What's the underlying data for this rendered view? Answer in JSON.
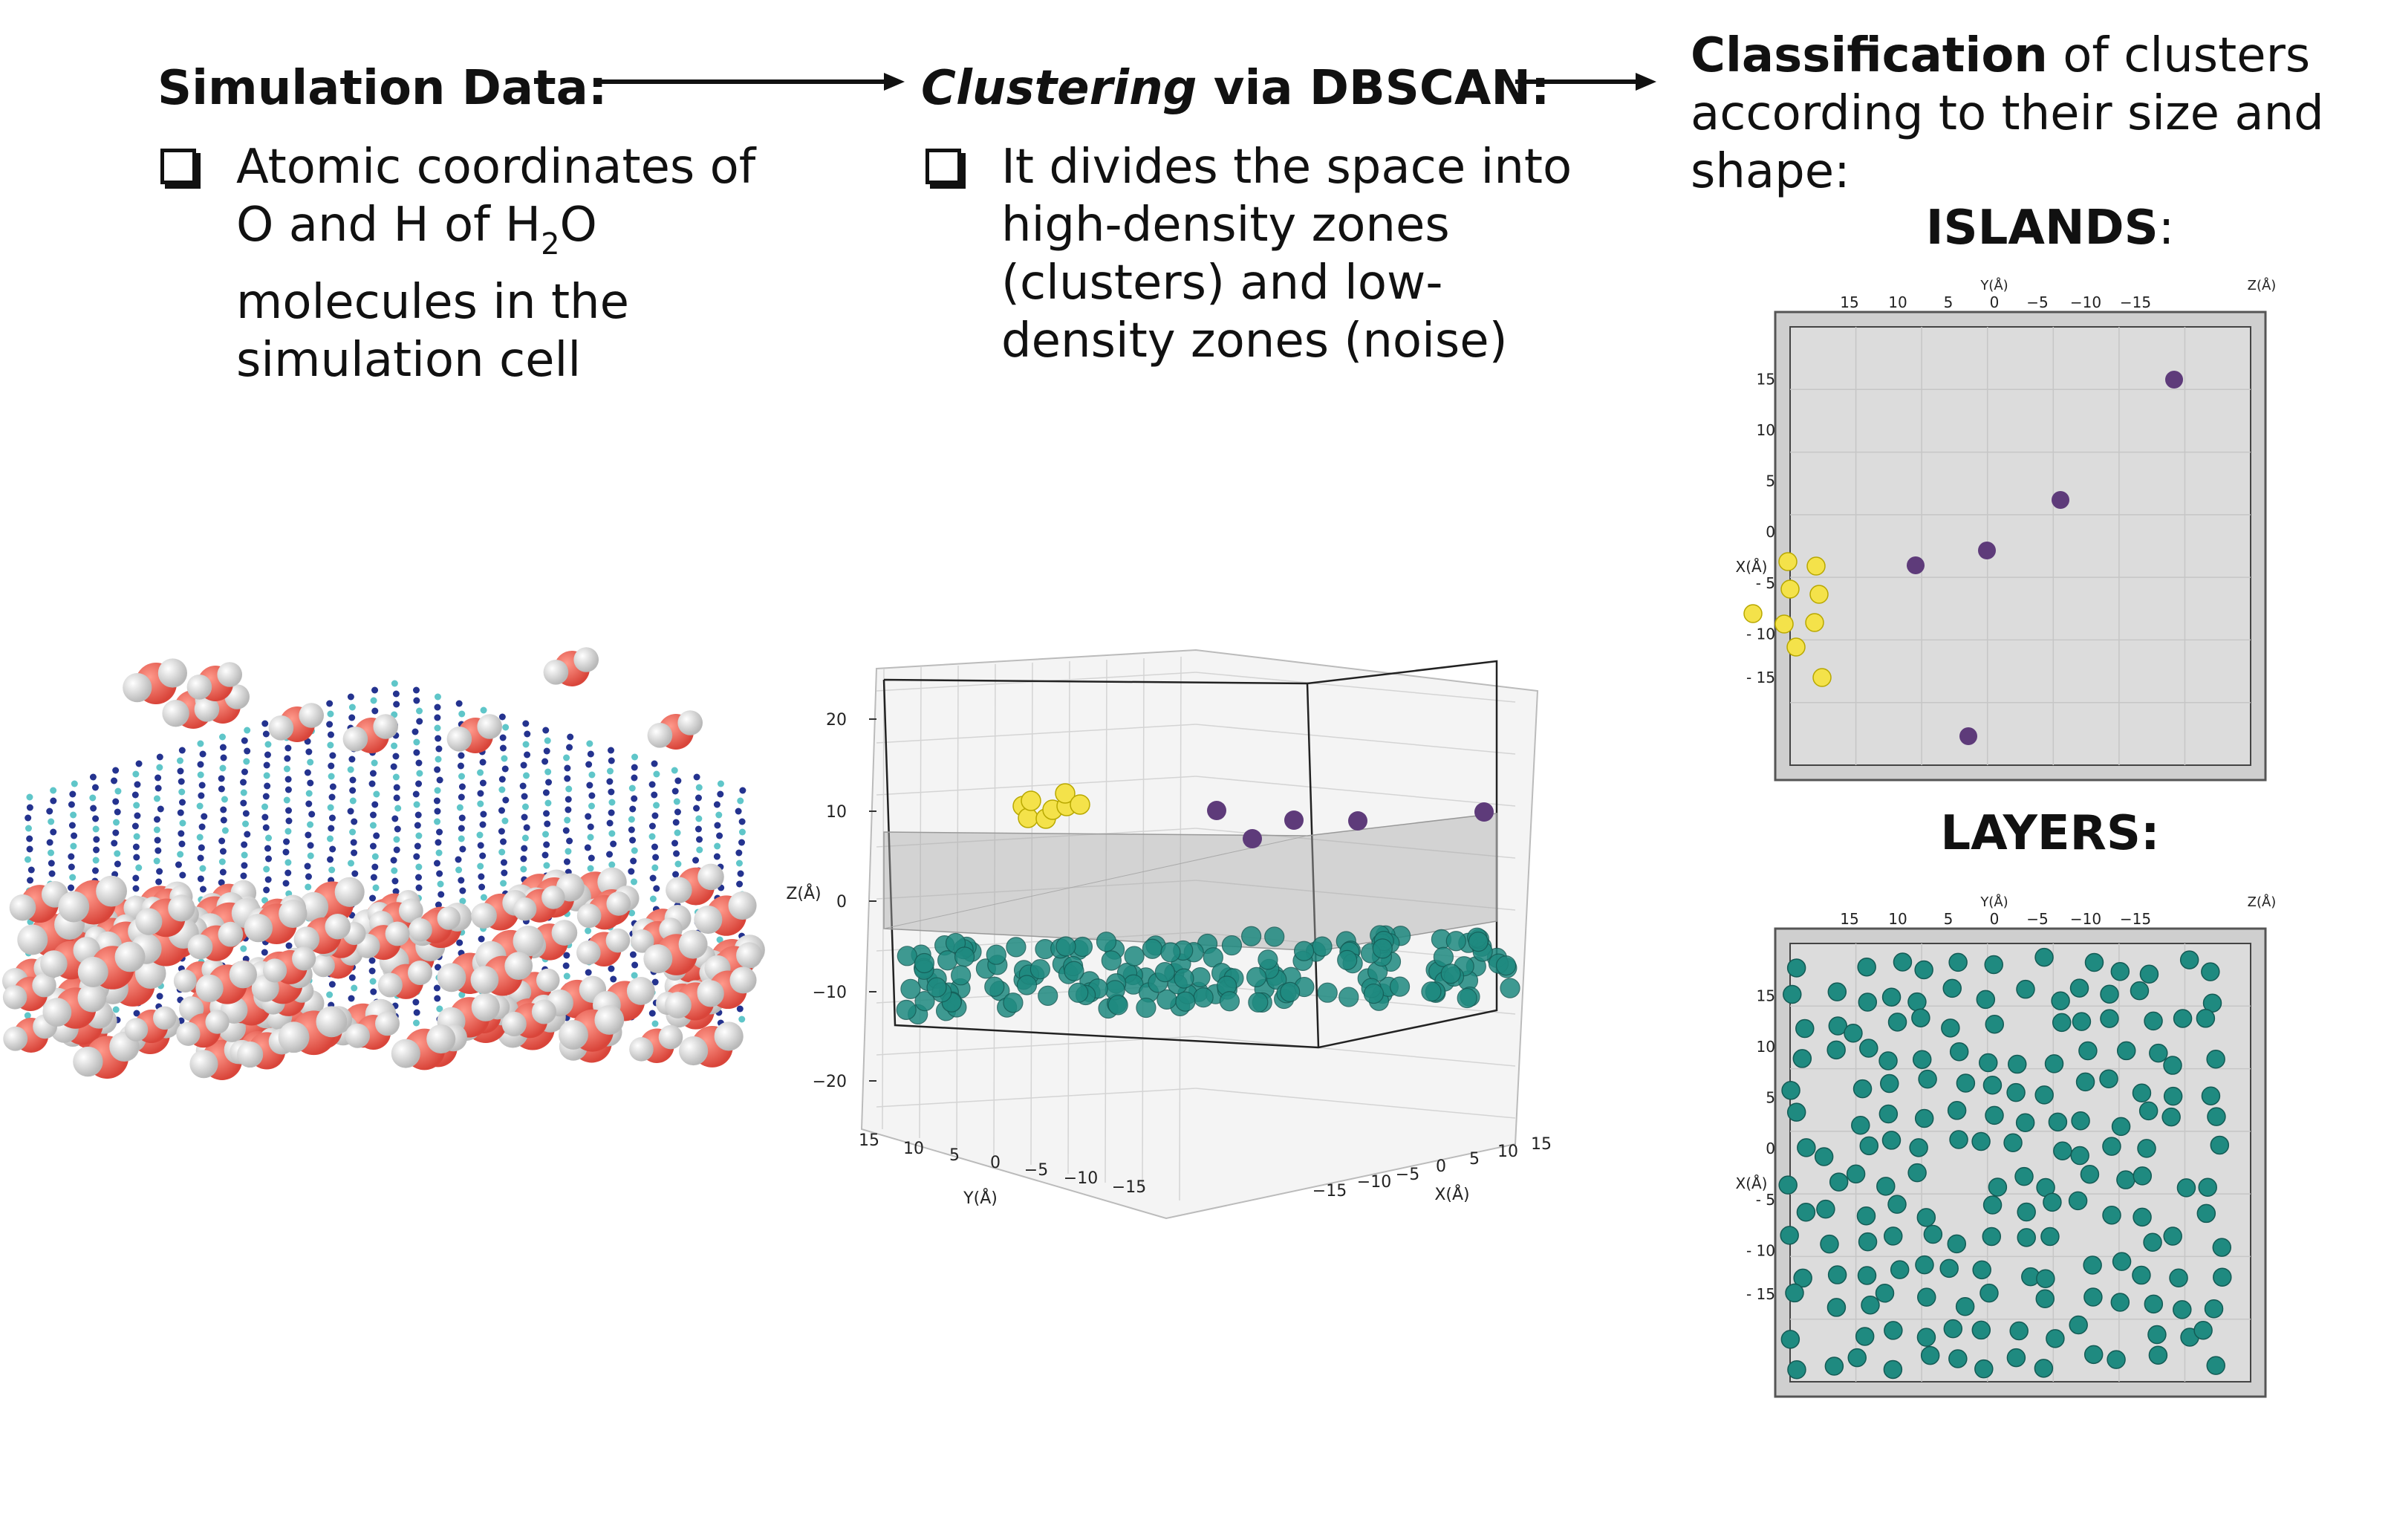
{
  "step1": {
    "title": "Simulation Data:",
    "bullet_lines": [
      "Atomic coordinates of",
      "O and H of H",
      "2",
      "O",
      "molecules in the",
      "simulation cell"
    ]
  },
  "step2": {
    "title_em": "Clustering",
    "title_rest": " via DBSCAN:",
    "bullet_lines": [
      "It divides the space into",
      "high-density zones",
      "(clusters) and low-",
      "density zones (noise)"
    ]
  },
  "step3": {
    "title_bold": "Classification",
    "title_rest": " of clusters",
    "lines": [
      "according to their size and",
      "shape:"
    ],
    "islands_label": "ISLANDS",
    "islands_colon": ":",
    "layers_label": "LAYERS:"
  },
  "colors": {
    "oxygen": "#d9453a",
    "hydrogen": "#e6e6e6",
    "layer": "#1f8a80",
    "island_yellow": "#f4e24a",
    "island_purple": "#5e3b7a",
    "panel": "#dcdcdc"
  },
  "plot3d": {
    "z_ticks": [
      "20",
      "10",
      "0",
      "−10",
      "−20"
    ],
    "zlabel": "Z(Å)",
    "y_ticks": [
      "15",
      "10",
      "5",
      "0",
      "−5",
      "−10",
      "−15"
    ],
    "ylabel": "Y(Å)",
    "x_ticks": [
      "−15",
      "−10",
      "−5",
      "0",
      "5",
      "10",
      "15"
    ],
    "xlabel": "X(Å)"
  },
  "top_views": {
    "y_ticks": [
      "15",
      "10",
      "5",
      "0",
      "−5",
      "−10",
      "−15"
    ],
    "ylabel": "Y(Å)",
    "x_ticks": [
      "15",
      "10",
      "5",
      "0",
      "- 5",
      "- 10",
      "- 15"
    ],
    "xlabel": "X(Å)",
    "zlabel": "Z(Å)"
  }
}
